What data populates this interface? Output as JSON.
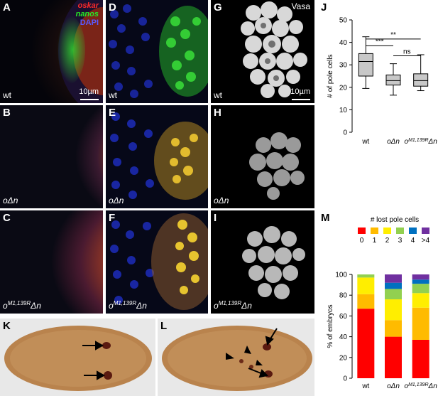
{
  "panels": {
    "A": {
      "label": "A",
      "genotype": "wt",
      "scale": "10µm",
      "legend": {
        "oskar": "oskar",
        "nanos": "nanos",
        "dapi": "DAPI"
      }
    },
    "B": {
      "label": "B",
      "genotype": "oΔn"
    },
    "C": {
      "label": "C",
      "genotype_base": "o",
      "genotype_sup": "M1,139R",
      "genotype_end": "Δn"
    },
    "D": {
      "label": "D",
      "genotype": "wt"
    },
    "E": {
      "label": "E",
      "genotype": "oΔn"
    },
    "F": {
      "label": "F",
      "genotype_base": "o",
      "genotype_sup": "M1,139R",
      "genotype_end": "Δn"
    },
    "G": {
      "label": "G",
      "genotype": "wt",
      "stain": "Vasa",
      "scale": "10µm"
    },
    "H": {
      "label": "H",
      "genotype": "oΔn"
    },
    "I": {
      "label": "I",
      "genotype_base": "o",
      "genotype_sup": "M1,139R",
      "genotype_end": "Δn"
    },
    "K": {
      "label": "K"
    },
    "L": {
      "label": "L"
    },
    "J": {
      "label": "J"
    },
    "M": {
      "label": "M"
    }
  },
  "colors": {
    "oskar": "#ff2a2a",
    "nanos": "#27e827",
    "dapi": "#3b3bff",
    "bin_0": "#ff0000",
    "bin_1": "#ffbb00",
    "bin_2": "#ffee00",
    "bin_3": "#92d050",
    "bin_4": "#0070c0",
    "bin_gt4": "#7030a0",
    "box_fill": "#c8c8c8"
  },
  "chart_data": [
    {
      "type": "box",
      "panel": "J",
      "ylabel": "# of pole cells",
      "ylim": [
        0,
        50
      ],
      "yticks": [
        0,
        10,
        20,
        30,
        40,
        50
      ],
      "categories": [
        "wt",
        "oΔn",
        "oM1,139RΔn"
      ],
      "category_labels": [
        {
          "base": "wt",
          "sup": "",
          "end": "",
          "italic": false
        },
        {
          "base": "oΔn",
          "sup": "",
          "end": "",
          "italic": true
        },
        {
          "base": "o",
          "sup": "M1,139R",
          "end": "Δn",
          "italic": true
        }
      ],
      "boxes": [
        {
          "min": 19.5,
          "q1": 25,
          "median": 31.5,
          "q3": 35,
          "max": 42.5
        },
        {
          "min": 16.5,
          "q1": 21,
          "median": 23,
          "q3": 25.5,
          "max": 30.5
        },
        {
          "min": 18.5,
          "q1": 20.5,
          "median": 23,
          "q3": 26,
          "max": 34.5
        }
      ],
      "significance": [
        {
          "from": 0,
          "to": 1,
          "label": "***",
          "y": 38.5
        },
        {
          "from": 0,
          "to": 2,
          "label": "**",
          "y": 41.5
        },
        {
          "from": 1,
          "to": 2,
          "label": "ns",
          "y": 34
        }
      ]
    },
    {
      "type": "bar",
      "stacked": true,
      "panel": "M",
      "title": "# lost pole cells",
      "ylabel": "% of embryos",
      "ylim": [
        0,
        100
      ],
      "yticks": [
        0,
        20,
        40,
        60,
        80,
        100
      ],
      "legend_labels": [
        "0",
        "1",
        "2",
        "3",
        "4",
        ">4"
      ],
      "categories": [
        "wt",
        "oΔn",
        "oM1,139RΔn"
      ],
      "category_labels": [
        {
          "base": "wt",
          "sup": "",
          "end": "",
          "italic": false
        },
        {
          "base": "oΔn",
          "sup": "",
          "end": "",
          "italic": true
        },
        {
          "base": "o",
          "sup": "M1,139R",
          "end": "Δn",
          "italic": true
        }
      ],
      "series": [
        {
          "name": "0",
          "values": [
            67,
            40,
            37
          ]
        },
        {
          "name": "1",
          "values": [
            14,
            16,
            31
          ]
        },
        {
          "name": "2",
          "values": [
            16,
            20,
            14
          ]
        },
        {
          "name": "3",
          "values": [
            3,
            10,
            9
          ]
        },
        {
          "name": "4",
          "values": [
            0,
            6,
            4
          ]
        },
        {
          "name": ">4",
          "values": [
            0,
            8,
            5
          ]
        }
      ]
    }
  ]
}
